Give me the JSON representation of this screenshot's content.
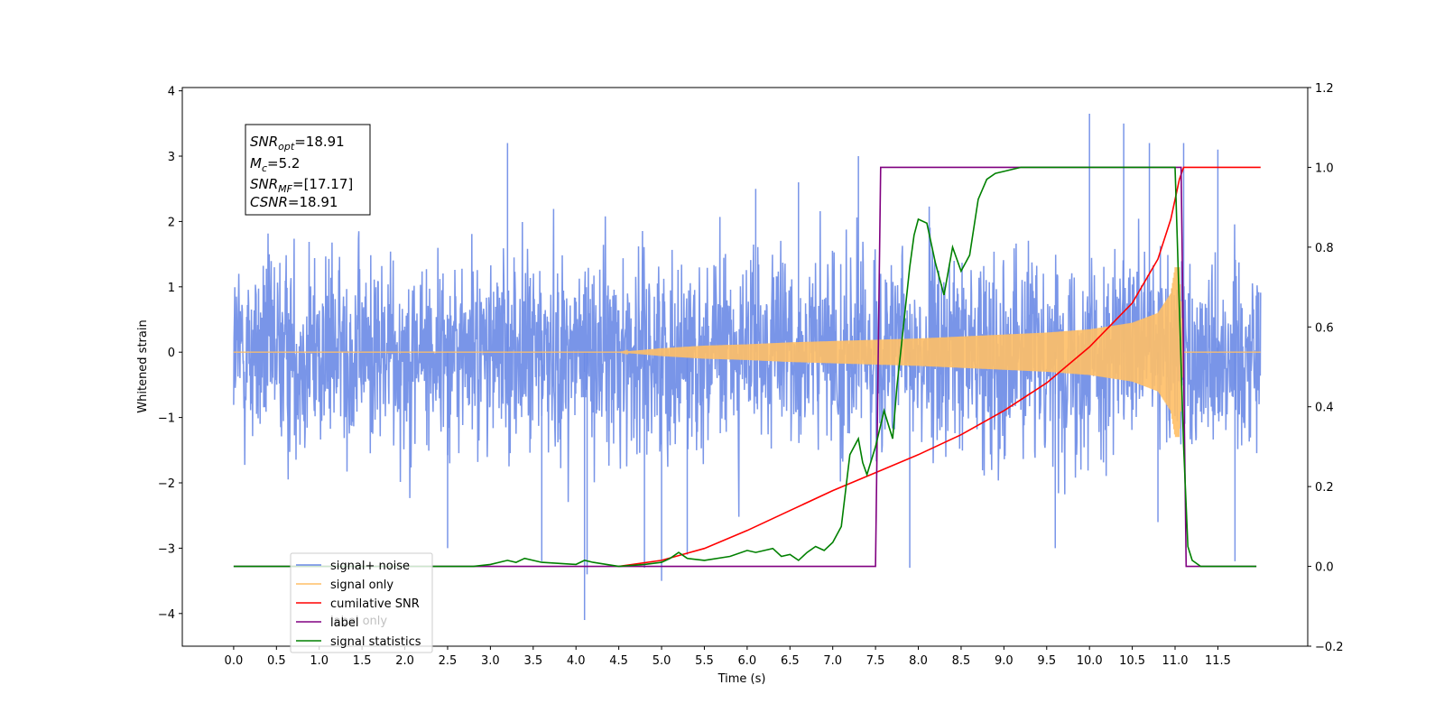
{
  "chart_data": {
    "type": "line",
    "xlabel": "Time (s)",
    "ylabel": "Whitened strain",
    "xlim": [
      -0.6,
      12.55
    ],
    "ylim": [
      -4.5,
      4.05
    ],
    "y2lim": [
      -0.2,
      1.2
    ],
    "x_ticks": [
      "0.0",
      "0.5",
      "1.0",
      "1.5",
      "2.0",
      "2.5",
      "3.0",
      "3.5",
      "4.0",
      "4.5",
      "5.0",
      "5.5",
      "6.0",
      "6.5",
      "7.0",
      "7.5",
      "8.0",
      "8.5",
      "9.0",
      "9.5",
      "10.0",
      "10.5",
      "11.0",
      "11.5"
    ],
    "y_ticks": [
      "4",
      "3",
      "2",
      "1",
      "0",
      "−1",
      "−2",
      "−3",
      "−4"
    ],
    "y2_ticks": [
      "1.2",
      "1.0",
      "0.8",
      "0.6",
      "0.4",
      "0.2",
      "0.0",
      "−0.2"
    ],
    "annotation": {
      "snr_opt": {
        "sym": "SNR",
        "sub": "opt",
        "val": "=18.91"
      },
      "mc": {
        "sym": "M",
        "sub": "c",
        "val": "=5.2"
      },
      "snr_mf": {
        "sym": "SNR",
        "sub": "MF",
        "val": "=[17.17]"
      },
      "csnr": {
        "sym": "CSNR",
        "val": "=18.91"
      }
    },
    "legend_position": "lower-left",
    "legend": [
      {
        "label": "signal+ noise",
        "color": "#6a8ae6"
      },
      {
        "label": "signal only",
        "color": "#ffbf66"
      },
      {
        "label": "cumilative SNR",
        "color": "#ff0000"
      },
      {
        "label": "label",
        "color": "#800080"
      },
      {
        "label": "signal statistics",
        "color": "#008000"
      }
    ],
    "legend_hidden_text": "label only",
    "series": [
      {
        "name": "signal+ noise",
        "axis": "left",
        "color": "#6a8ae6",
        "x_range": [
          0.0,
          12.0
        ],
        "typical_envelope": [
          -1.6,
          1.6
        ],
        "peak_range": [
          -3.3,
          3.7
        ],
        "outliers": [
          {
            "x": 3.2,
            "y": 3.2
          },
          {
            "x": 3.6,
            "y": -3.2
          },
          {
            "x": 4.1,
            "y": -4.1
          },
          {
            "x": 4.13,
            "y": -3.4
          },
          {
            "x": 4.8,
            "y": -3.3
          },
          {
            "x": 5.0,
            "y": -3.5
          },
          {
            "x": 6.1,
            "y": 2.5
          },
          {
            "x": 6.6,
            "y": 2.6
          },
          {
            "x": 7.3,
            "y": 3.0
          },
          {
            "x": 7.9,
            "y": -3.3
          },
          {
            "x": 10.0,
            "y": 3.65
          },
          {
            "x": 10.4,
            "y": 3.5
          },
          {
            "x": 10.7,
            "y": 3.2
          },
          {
            "x": 10.8,
            "y": -2.6
          },
          {
            "x": 11.1,
            "y": 3.2
          },
          {
            "x": 11.5,
            "y": 3.1
          },
          {
            "x": 11.7,
            "y": -3.2
          },
          {
            "x": 2.5,
            "y": -3.0
          },
          {
            "x": 5.3,
            "y": -3.1
          },
          {
            "x": 9.6,
            "y": -3.0
          }
        ]
      },
      {
        "name": "signal only",
        "axis": "left",
        "color": "#ffbf66",
        "x": [
          0.0,
          4.5,
          5.0,
          5.5,
          6.0,
          6.5,
          7.0,
          7.5,
          8.0,
          8.5,
          9.0,
          9.5,
          10.0,
          10.5,
          10.8,
          10.95,
          11.0,
          11.05,
          11.1,
          12.0
        ],
        "amplitude": [
          0.0,
          0.0,
          0.06,
          0.1,
          0.12,
          0.15,
          0.17,
          0.19,
          0.21,
          0.24,
          0.27,
          0.3,
          0.35,
          0.45,
          0.6,
          0.9,
          1.3,
          1.3,
          0.0,
          0.0
        ]
      },
      {
        "name": "cumilative SNR",
        "axis": "right",
        "color": "#ff0000",
        "x": [
          4.5,
          5.0,
          5.5,
          6.0,
          6.5,
          7.0,
          7.5,
          8.0,
          8.5,
          9.0,
          9.5,
          10.0,
          10.5,
          10.8,
          10.95,
          11.05,
          11.1,
          12.0
        ],
        "values": [
          0.0,
          0.015,
          0.045,
          0.09,
          0.14,
          0.19,
          0.235,
          0.28,
          0.33,
          0.39,
          0.46,
          0.55,
          0.66,
          0.77,
          0.87,
          0.97,
          1.0,
          1.0
        ]
      },
      {
        "name": "label",
        "axis": "right",
        "color": "#800080",
        "x": [
          0.0,
          7.5,
          7.56,
          11.07,
          11.13,
          11.95
        ],
        "values": [
          0.0,
          0.0,
          1.0,
          1.0,
          0.0,
          0.0
        ]
      },
      {
        "name": "signal statistics",
        "axis": "right",
        "color": "#008000",
        "x": [
          0.0,
          2.8,
          3.0,
          3.2,
          3.3,
          3.4,
          3.6,
          4.0,
          4.1,
          4.2,
          4.5,
          4.8,
          5.0,
          5.1,
          5.2,
          5.3,
          5.5,
          5.8,
          6.0,
          6.1,
          6.3,
          6.4,
          6.5,
          6.6,
          6.7,
          6.8,
          6.9,
          7.0,
          7.1,
          7.2,
          7.3,
          7.35,
          7.4,
          7.5,
          7.6,
          7.7,
          7.75,
          7.8,
          7.9,
          7.95,
          8.0,
          8.1,
          8.2,
          8.3,
          8.4,
          8.5,
          8.6,
          8.7,
          8.8,
          8.9,
          9.0,
          9.1,
          9.2,
          11.0,
          11.1,
          11.15,
          11.2,
          11.3,
          11.95
        ],
        "values": [
          0.0,
          0.0,
          0.005,
          0.015,
          0.01,
          0.02,
          0.01,
          0.005,
          0.015,
          0.01,
          0.0,
          0.005,
          0.01,
          0.02,
          0.035,
          0.02,
          0.015,
          0.025,
          0.04,
          0.035,
          0.045,
          0.025,
          0.03,
          0.015,
          0.035,
          0.05,
          0.04,
          0.06,
          0.1,
          0.28,
          0.32,
          0.26,
          0.23,
          0.3,
          0.39,
          0.32,
          0.45,
          0.55,
          0.75,
          0.83,
          0.87,
          0.86,
          0.76,
          0.68,
          0.8,
          0.74,
          0.78,
          0.92,
          0.97,
          0.985,
          0.99,
          0.995,
          1.0,
          1.0,
          0.3,
          0.05,
          0.015,
          0.0,
          0.0
        ]
      }
    ]
  }
}
